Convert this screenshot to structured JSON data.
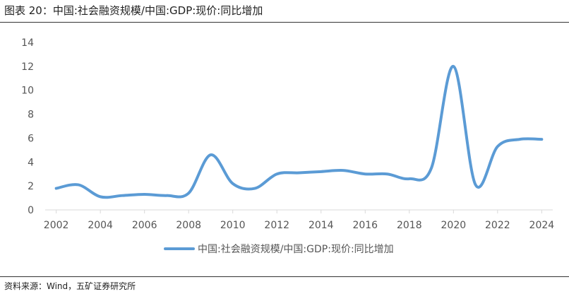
{
  "figure": {
    "title": "图表 20：中国:社会融资规模/中国:GDP:现价:同比增加",
    "source": "资料来源：Wind，五矿证券研究所"
  },
  "chart_data": {
    "type": "line",
    "title": "",
    "xlabel": "",
    "ylabel": "",
    "xlim": [
      2001.5,
      2024.5
    ],
    "ylim": [
      0,
      14
    ],
    "x_ticks": [
      2002,
      2004,
      2006,
      2008,
      2010,
      2012,
      2014,
      2016,
      2018,
      2020,
      2022,
      2024
    ],
    "y_ticks": [
      0,
      2,
      4,
      6,
      8,
      10,
      12,
      14
    ],
    "grid": false,
    "legend_position": "bottom-center",
    "series": [
      {
        "name": "中国:社会融资规模/中国:GDP:现价:同比增加",
        "color": "#5B9BD5",
        "x": [
          2002,
          2003,
          2004,
          2005,
          2006,
          2007,
          2008,
          2009,
          2010,
          2011,
          2012,
          2013,
          2014,
          2015,
          2016,
          2017,
          2018,
          2019,
          2020,
          2021,
          2022,
          2023,
          2024
        ],
        "values": [
          1.8,
          2.1,
          1.1,
          1.2,
          1.3,
          1.2,
          1.4,
          4.6,
          2.2,
          1.8,
          3.0,
          3.1,
          3.2,
          3.3,
          3.0,
          3.0,
          2.6,
          3.5,
          12.0,
          2.1,
          5.3,
          5.9,
          5.9
        ]
      }
    ]
  }
}
